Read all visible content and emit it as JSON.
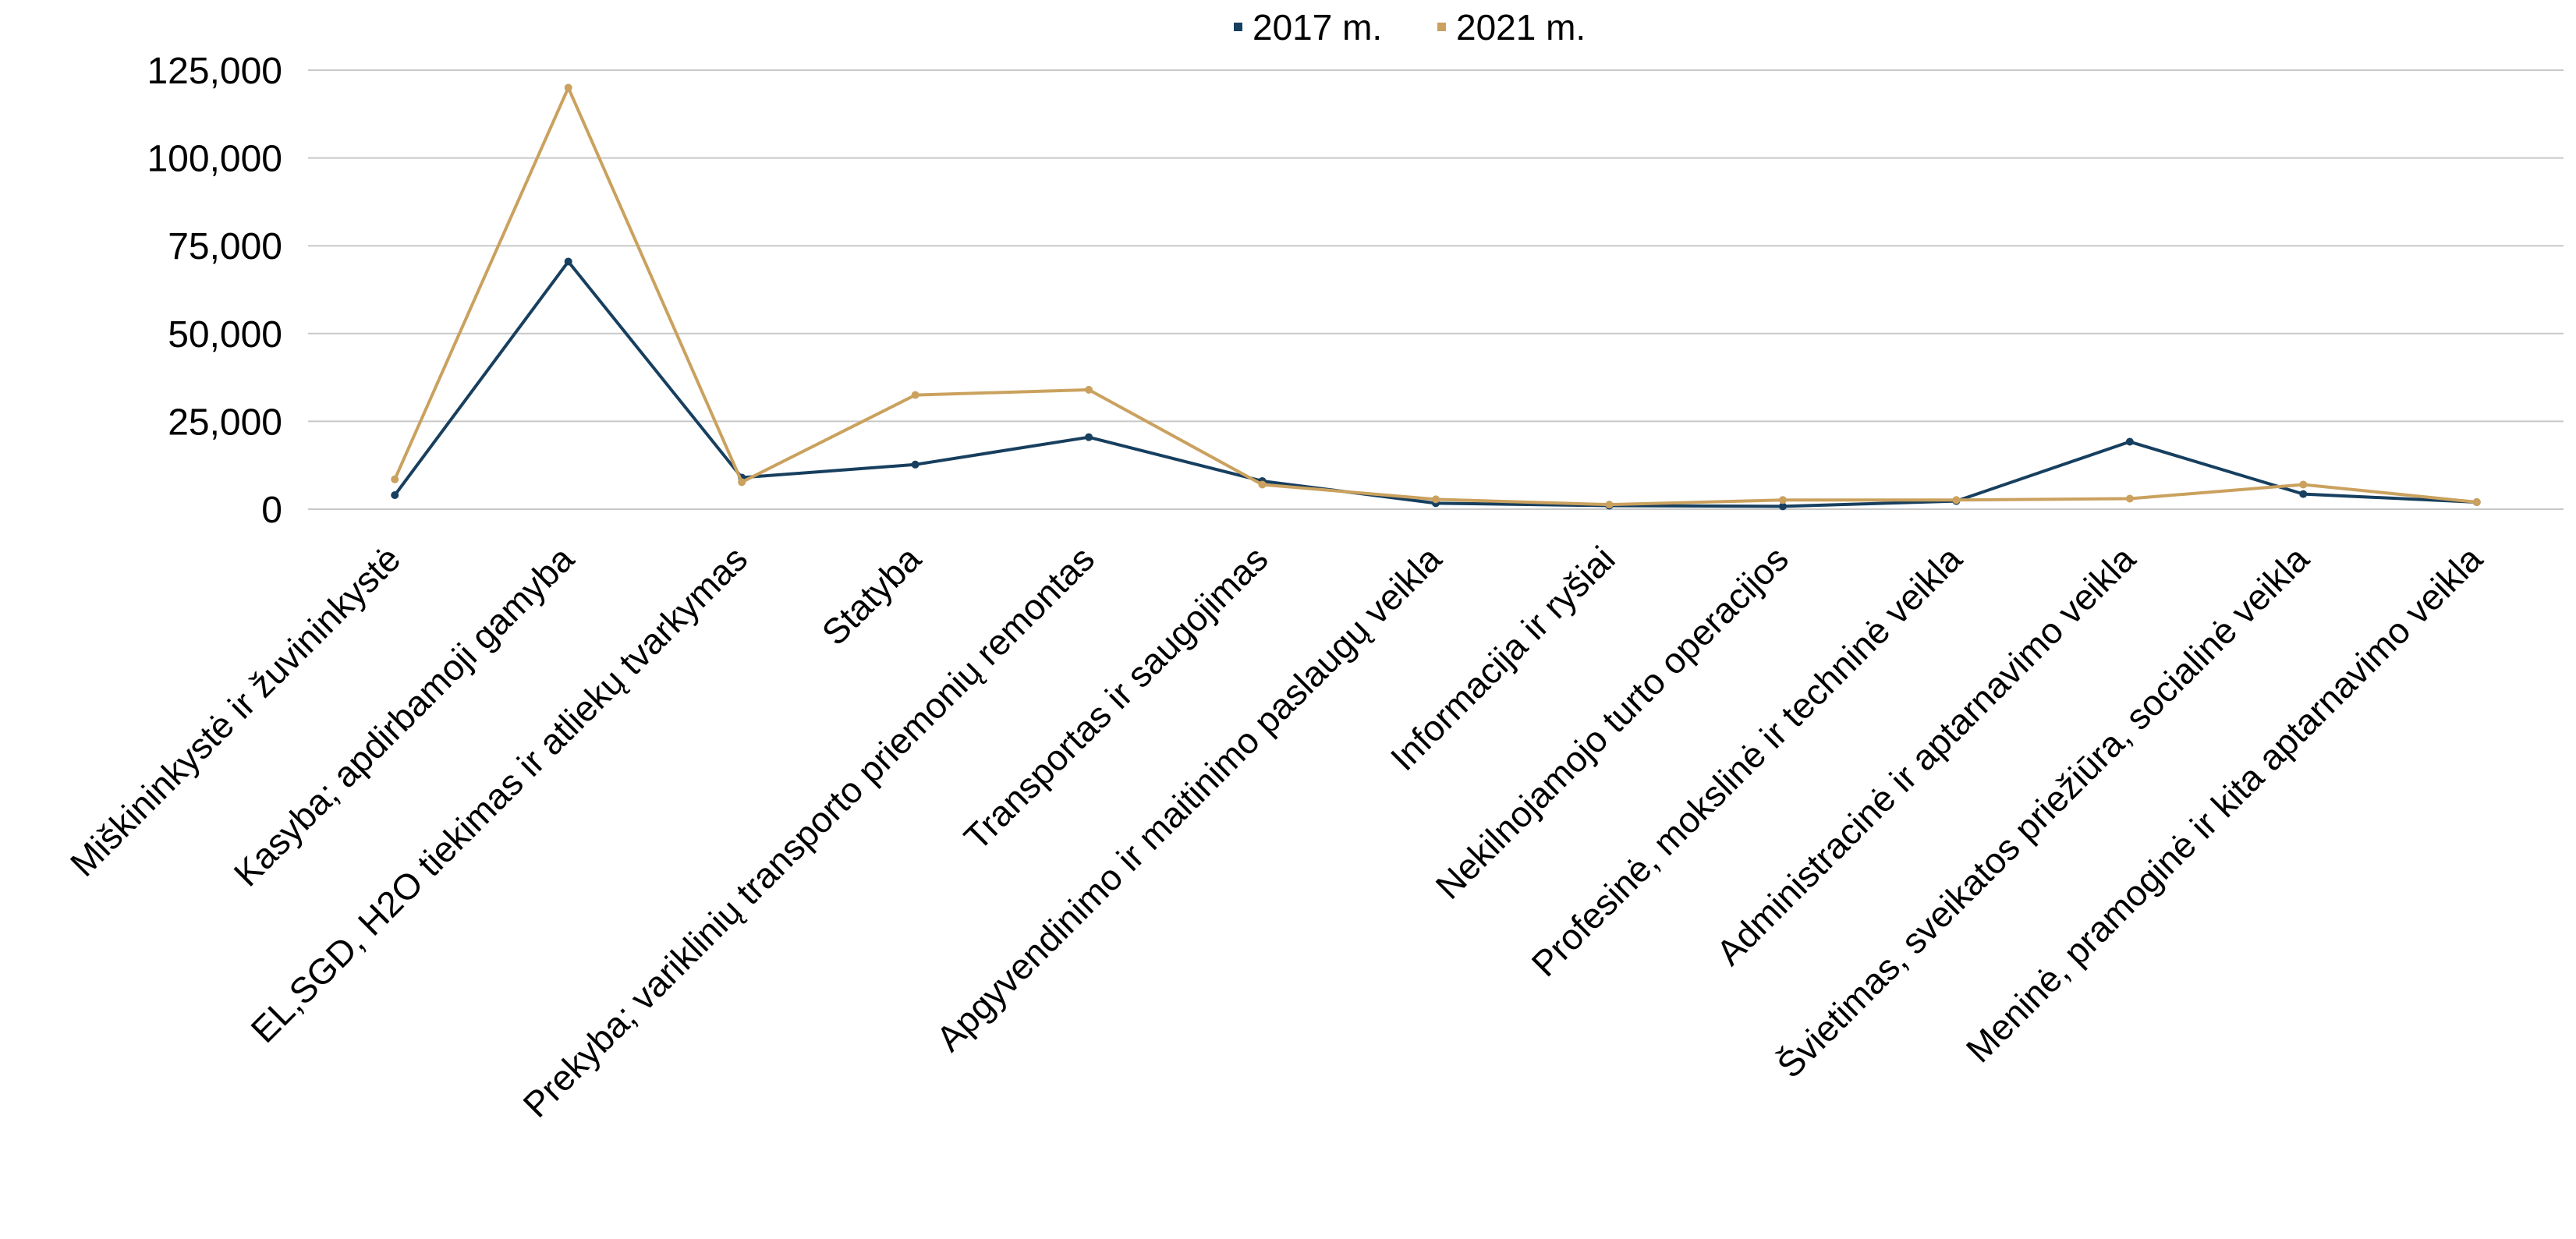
{
  "chart_data": {
    "type": "line",
    "title": "",
    "xlabel": "",
    "ylabel": "",
    "ylim": [
      0,
      125000
    ],
    "yticks": [
      0,
      25000,
      50000,
      75000,
      100000,
      125000
    ],
    "ytick_labels": [
      "0",
      "25,000",
      "50,000",
      "75,000",
      "100,000",
      "125,000"
    ],
    "grid": true,
    "legend_position": "top-center",
    "categories": [
      "Miškininkystė ir žuvininkystė",
      "Kasyba; apdirbamoji gamyba",
      "EL,SGD, H2O tiekimas ir atliekų tvarkymas",
      "Statyba",
      "Prekyba; variklinių transporto priemonių remontas",
      "Transportas ir saugojimas",
      "Apgyvendinimo ir maitinimo paslaugų veikla",
      "Informacija ir ryšiai",
      "Nekilnojamojo turto operacijos",
      "Profesinė, mokslinė ir techninė veikla",
      "Administracinė ir aptarnavimo veikla",
      "Švietimas, sveikatos priežiūra, socialinė veikla",
      "Meninė, pramoginė ir kita aptarnavimo veikla"
    ],
    "series": [
      {
        "name": "2017 m.",
        "color": "#173f5f",
        "values": [
          4000,
          70500,
          9000,
          12700,
          20500,
          8000,
          1700,
          1000,
          800,
          2300,
          19200,
          4300,
          2000
        ]
      },
      {
        "name": "2021 m.",
        "color": "#caa15e",
        "values": [
          8500,
          120000,
          7700,
          32500,
          34000,
          7000,
          2800,
          1300,
          2600,
          2600,
          3000,
          7000,
          2000
        ]
      }
    ]
  }
}
